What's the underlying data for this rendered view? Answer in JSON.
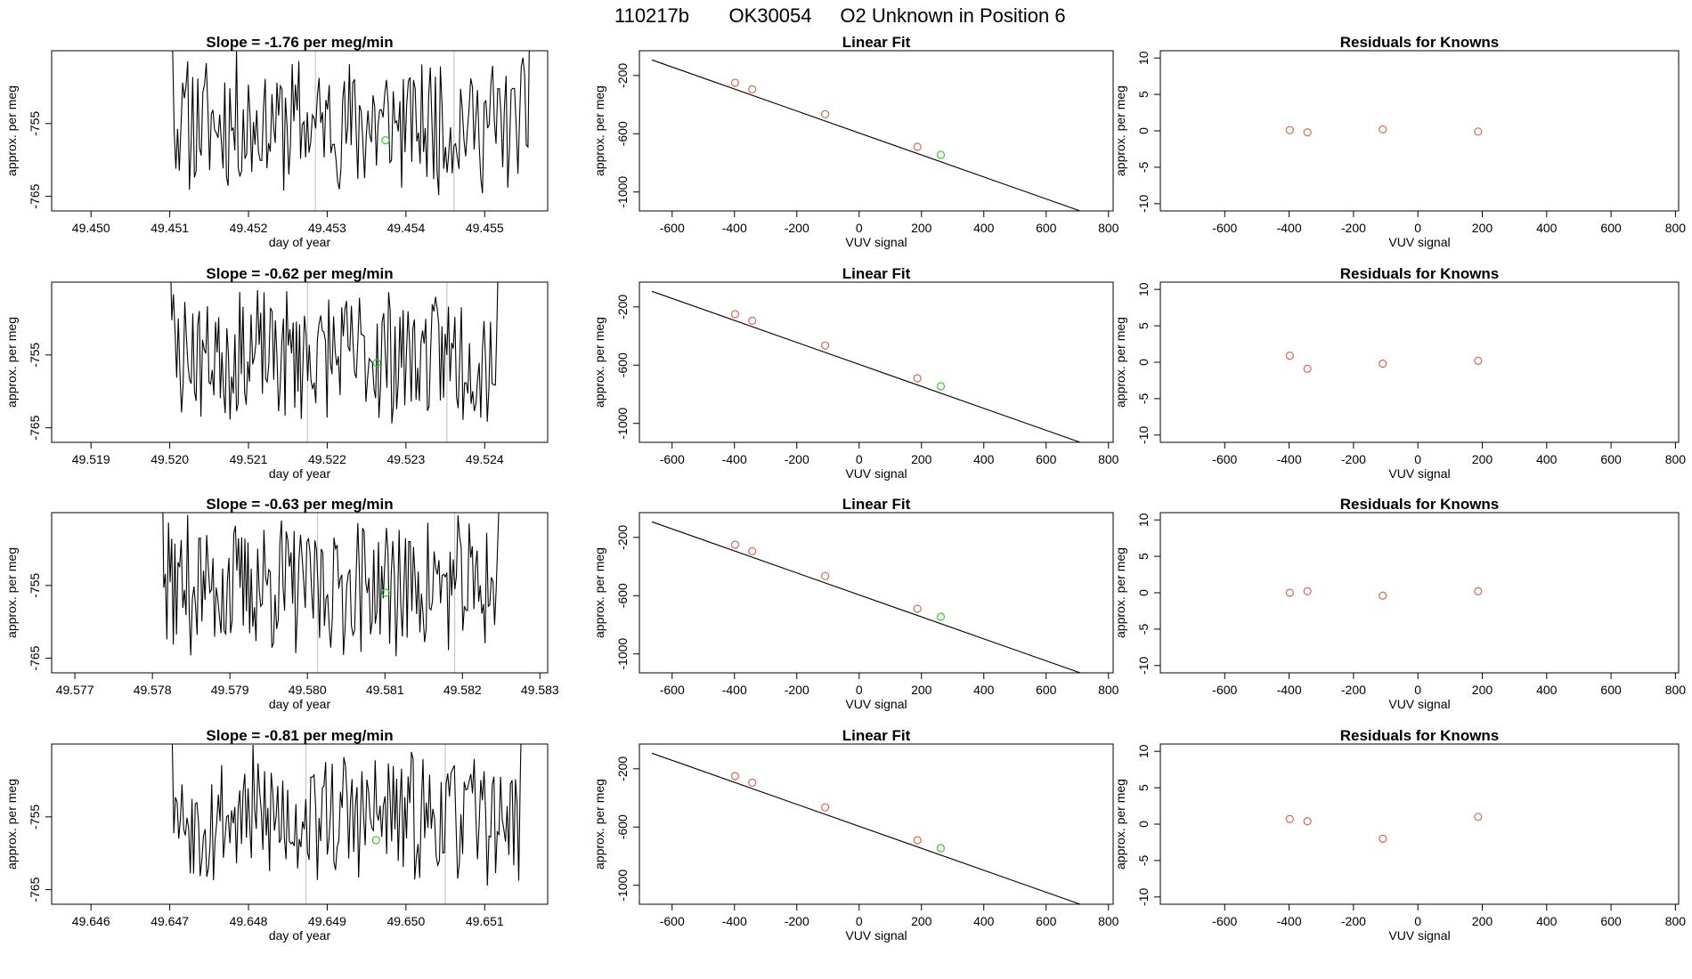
{
  "page": {
    "title_parts": [
      "110217b",
      "OK30054",
      "O2 Unknown in Position  6"
    ]
  },
  "colors": {
    "line": "#000000",
    "known_point": "#d2695a",
    "unknown_point": "#32cd32",
    "marker_line": "#c8c8c8",
    "frame": "#000000"
  },
  "chart_data": [
    {
      "type": "line",
      "row": 0,
      "title_prefix": "Slope = ",
      "slope": "-1.76",
      "title_suffix": " per meg/min",
      "xlabel": "day of year",
      "ylabel": "approx. per meg",
      "xlim": [
        49.4495,
        49.4558
      ],
      "ylim": [
        -767.0,
        -745.0
      ],
      "xticks": [
        "49.450",
        "49.451",
        "49.452",
        "49.453",
        "49.454",
        "49.455"
      ],
      "yticks": [
        "-755",
        "-765"
      ],
      "series_start": 49.4508,
      "series_end": 49.4557,
      "n_points": 230,
      "seed": 11,
      "markers": [
        49.45285,
        49.45461
      ],
      "unknown_point": {
        "x": 49.45374,
        "y": -757.3
      }
    },
    {
      "type": "line",
      "row": 1,
      "title_prefix": "Slope = ",
      "slope": "-0.62",
      "title_suffix": " per meg/min",
      "xlabel": "day of year",
      "ylabel": "approx. per meg",
      "xlim": [
        49.5185,
        49.5248
      ],
      "ylim": [
        -767.0,
        -745.0
      ],
      "xticks": [
        "49.519",
        "49.520",
        "49.521",
        "49.522",
        "49.523",
        "49.524"
      ],
      "yticks": [
        "-755",
        "-765"
      ],
      "series_start": 49.5198,
      "series_end": 49.5243,
      "n_points": 220,
      "seed": 23,
      "markers": [
        49.52175,
        49.52352
      ],
      "unknown_point": {
        "x": 49.52263,
        "y": -756.1
      }
    },
    {
      "type": "line",
      "row": 2,
      "title_prefix": "Slope = ",
      "slope": "-0.63",
      "title_suffix": " per meg/min",
      "xlabel": "day of year",
      "ylabel": "approx. per meg",
      "xlim": [
        49.5767,
        49.5831
      ],
      "ylim": [
        -767.0,
        -745.0
      ],
      "xticks": [
        "49.577",
        "49.578",
        "49.579",
        "49.580",
        "49.581",
        "49.582",
        "49.583"
      ],
      "yticks": [
        "-755",
        "-765"
      ],
      "series_start": 49.5779,
      "series_end": 49.5826,
      "n_points": 230,
      "seed": 37,
      "markers": [
        49.58013,
        49.5819
      ],
      "unknown_point": {
        "x": 49.58101,
        "y": -756.0
      }
    },
    {
      "type": "line",
      "row": 3,
      "title_prefix": "Slope = ",
      "slope": "-0.81",
      "title_suffix": " per meg/min",
      "xlabel": "day of year",
      "ylabel": "approx. per meg",
      "xlim": [
        49.6455,
        49.6518
      ],
      "ylim": [
        -767.0,
        -745.0
      ],
      "xticks": [
        "49.646",
        "49.647",
        "49.648",
        "49.649",
        "49.650",
        "49.651"
      ],
      "yticks": [
        "-755",
        "-765"
      ],
      "series_start": 49.6468,
      "series_end": 49.6516,
      "n_points": 230,
      "seed": 53,
      "markers": [
        49.64873,
        49.6505
      ],
      "unknown_point": {
        "x": 49.64962,
        "y": -758.2
      }
    },
    {
      "type": "scatter",
      "row": 0,
      "title": "Linear Fit",
      "xlabel": "VUV signal",
      "ylabel": "approx. per meg",
      "xlim": [
        -705,
        815
      ],
      "ylim": [
        -1130,
        -30
      ],
      "xticks": [
        "-600",
        "-400",
        "-200",
        "0",
        "200",
        "400",
        "600",
        "800"
      ],
      "yticks": [
        "-200",
        "-600",
        "-1000"
      ],
      "fit_line": {
        "x": [
          -665,
          745
        ],
        "y": [
          -93,
          -1157
        ]
      },
      "knowns": [
        {
          "x": -398,
          "y": -250
        },
        {
          "x": -343,
          "y": -295
        },
        {
          "x": -109,
          "y": -465
        },
        {
          "x": 187,
          "y": -690
        }
      ],
      "unknown": {
        "x": 262,
        "y": -745
      }
    },
    {
      "type": "scatter",
      "row": 1,
      "title": "Linear Fit",
      "xlabel": "VUV signal",
      "ylabel": "approx. per meg",
      "xlim": [
        -705,
        815
      ],
      "ylim": [
        -1130,
        -30
      ],
      "xticks": [
        "-600",
        "-400",
        "-200",
        "0",
        "200",
        "400",
        "600",
        "800"
      ],
      "yticks": [
        "-200",
        "-600",
        "-1000"
      ],
      "fit_line": {
        "x": [
          -665,
          745
        ],
        "y": [
          -93,
          -1157
        ]
      },
      "knowns": [
        {
          "x": -398,
          "y": -250
        },
        {
          "x": -343,
          "y": -295
        },
        {
          "x": -109,
          "y": -465
        },
        {
          "x": 187,
          "y": -690
        }
      ],
      "unknown": {
        "x": 262,
        "y": -745
      }
    },
    {
      "type": "scatter",
      "row": 2,
      "title": "Linear Fit",
      "xlabel": "VUV signal",
      "ylabel": "approx. per meg",
      "xlim": [
        -705,
        815
      ],
      "ylim": [
        -1130,
        -30
      ],
      "xticks": [
        "-600",
        "-400",
        "-200",
        "0",
        "200",
        "400",
        "600",
        "800"
      ],
      "yticks": [
        "-200",
        "-600",
        "-1000"
      ],
      "fit_line": {
        "x": [
          -665,
          745
        ],
        "y": [
          -93,
          -1157
        ]
      },
      "knowns": [
        {
          "x": -398,
          "y": -250
        },
        {
          "x": -343,
          "y": -295
        },
        {
          "x": -109,
          "y": -465
        },
        {
          "x": 187,
          "y": -690
        }
      ],
      "unknown": {
        "x": 262,
        "y": -745
      }
    },
    {
      "type": "scatter",
      "row": 3,
      "title": "Linear Fit",
      "xlabel": "VUV signal",
      "ylabel": "approx. per meg",
      "xlim": [
        -705,
        815
      ],
      "ylim": [
        -1130,
        -30
      ],
      "xticks": [
        "-600",
        "-400",
        "-200",
        "0",
        "200",
        "400",
        "600",
        "800"
      ],
      "yticks": [
        "-200",
        "-600",
        "-1000"
      ],
      "fit_line": {
        "x": [
          -665,
          745
        ],
        "y": [
          -93,
          -1157
        ]
      },
      "knowns": [
        {
          "x": -398,
          "y": -250
        },
        {
          "x": -343,
          "y": -295
        },
        {
          "x": -109,
          "y": -465
        },
        {
          "x": 187,
          "y": -690
        }
      ],
      "unknown": {
        "x": 262,
        "y": -745
      }
    },
    {
      "type": "scatter",
      "row": 0,
      "title": "Residuals for Knowns",
      "xlabel": "VUV signal",
      "ylabel": "approx. per meg",
      "xlim": [
        -800,
        810
      ],
      "ylim": [
        -11,
        11
      ],
      "xticks": [
        "-600",
        "-400",
        "-200",
        "0",
        "200",
        "400",
        "600",
        "800"
      ],
      "yticks": [
        "10",
        "5",
        "0",
        "-5",
        "-10"
      ],
      "points": [
        {
          "x": -398,
          "y": 0.1
        },
        {
          "x": -343,
          "y": -0.2
        },
        {
          "x": -109,
          "y": 0.2
        },
        {
          "x": 187,
          "y": -0.1
        }
      ]
    },
    {
      "type": "scatter",
      "row": 1,
      "title": "Residuals for Knowns",
      "xlabel": "VUV signal",
      "ylabel": "approx. per meg",
      "xlim": [
        -800,
        810
      ],
      "ylim": [
        -11,
        11
      ],
      "xticks": [
        "-600",
        "-400",
        "-200",
        "0",
        "200",
        "400",
        "600",
        "800"
      ],
      "yticks": [
        "10",
        "5",
        "0",
        "-5",
        "-10"
      ],
      "points": [
        {
          "x": -398,
          "y": 0.9
        },
        {
          "x": -343,
          "y": -0.9
        },
        {
          "x": -109,
          "y": -0.2
        },
        {
          "x": 187,
          "y": 0.2
        }
      ]
    },
    {
      "type": "scatter",
      "row": 2,
      "title": "Residuals for Knowns",
      "xlabel": "VUV signal",
      "ylabel": "approx. per meg",
      "xlim": [
        -800,
        810
      ],
      "ylim": [
        -11,
        11
      ],
      "xticks": [
        "-600",
        "-400",
        "-200",
        "0",
        "200",
        "400",
        "600",
        "800"
      ],
      "yticks": [
        "10",
        "5",
        "0",
        "-5",
        "-10"
      ],
      "points": [
        {
          "x": -398,
          "y": 0.0
        },
        {
          "x": -343,
          "y": 0.2
        },
        {
          "x": -109,
          "y": -0.4
        },
        {
          "x": 187,
          "y": 0.2
        }
      ]
    },
    {
      "type": "scatter",
      "row": 3,
      "title": "Residuals for Knowns",
      "xlabel": "VUV signal",
      "ylabel": "approx. per meg",
      "xlim": [
        -800,
        810
      ],
      "ylim": [
        -11,
        11
      ],
      "xticks": [
        "-600",
        "-400",
        "-200",
        "0",
        "200",
        "400",
        "600",
        "800"
      ],
      "yticks": [
        "10",
        "5",
        "0",
        "-5",
        "-10"
      ],
      "points": [
        {
          "x": -398,
          "y": 0.7
        },
        {
          "x": -343,
          "y": 0.4
        },
        {
          "x": -109,
          "y": -2.0
        },
        {
          "x": 187,
          "y": 1.0
        }
      ]
    }
  ]
}
